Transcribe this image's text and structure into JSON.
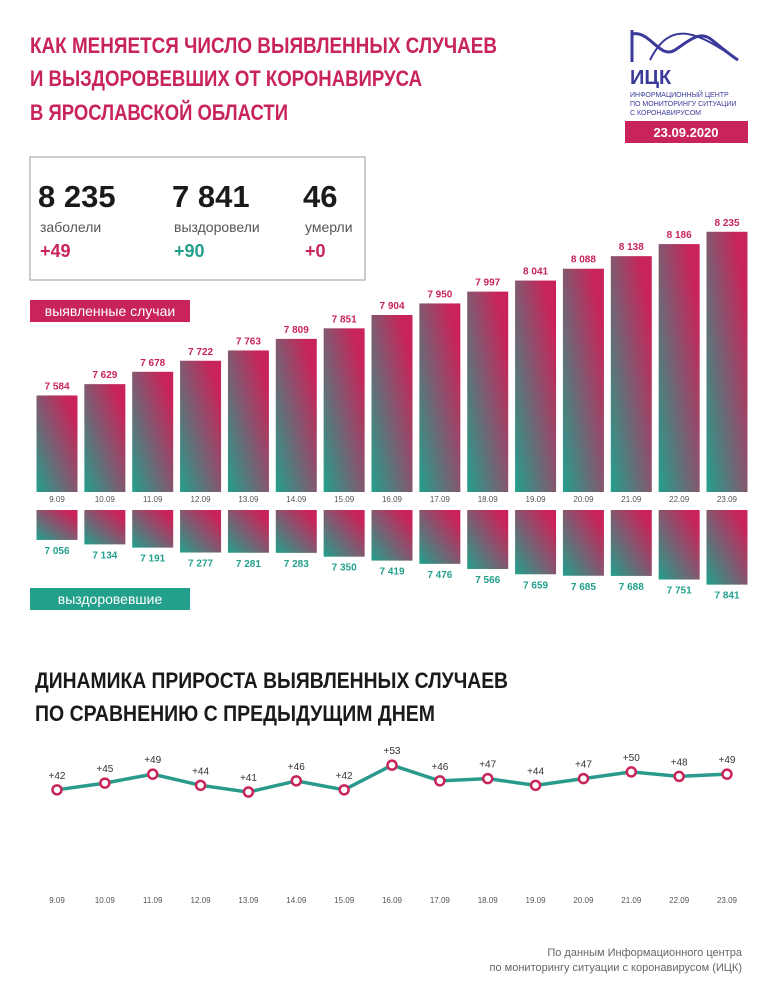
{
  "header": {
    "title": [
      "КАК МЕНЯЕТСЯ ЧИСЛО ВЫЯВЛЕННЫХ СЛУЧАЕВ",
      "И ВЫЗДОРОВЕВШИХ ОТ КОРОНАВИРУСА",
      "В ЯРОСЛАВСКОЙ ОБЛАСТИ"
    ],
    "logo": "ИЦК",
    "logo_subtitle": [
      "ИНФОРМАЦИОННЫЙ ЦЕНТР",
      "ПО МОНИТОРИНГУ СИТУАЦИИ",
      "С КОРОНАВИРУСОМ"
    ],
    "date": "23.09.2020"
  },
  "stats": [
    {
      "value": "8 235",
      "label": "заболели",
      "change": "+49"
    },
    {
      "value": "7 841",
      "label": "выздоровели",
      "change": "+90"
    },
    {
      "value": "46",
      "label": "умерли",
      "change": "+0"
    }
  ],
  "chart_data": [
    {
      "type": "bar",
      "label": "выявленные случаи",
      "categories": [
        "9.09",
        "10.09",
        "11.09",
        "12.09",
        "13.09",
        "14.09",
        "15.09",
        "16.09",
        "17.09",
        "18.09",
        "19.09",
        "20.09",
        "21.09",
        "22.09",
        "23.09"
      ],
      "values": [
        7584,
        7629,
        7678,
        7722,
        7763,
        7809,
        7851,
        7904,
        7950,
        7997,
        8041,
        8088,
        8138,
        8186,
        8235
      ],
      "value_labels": [
        "7 584",
        "7 629",
        "7 678",
        "7 722",
        "7 763",
        "7 809",
        "7 851",
        "7 904",
        "7 950",
        "7 997",
        "8 041",
        "8 088",
        "8 138",
        "8 186",
        "8 235"
      ],
      "ylim": [
        7200,
        8250
      ],
      "colors": [
        "#c8245a",
        "#22a08c"
      ]
    },
    {
      "type": "bar",
      "direction": "down",
      "label": "выздоровевшие",
      "values": [
        7056,
        7134,
        7191,
        7277,
        7281,
        7283,
        7350,
        7419,
        7476,
        7566,
        7659,
        7685,
        7688,
        7751,
        7841
      ],
      "value_labels": [
        "7 056",
        "7 134",
        "7 191",
        "7 277",
        "7 281",
        "7 283",
        "7 350",
        "7 419",
        "7 476",
        "7 566",
        "7 659",
        "7 685",
        "7 688",
        "7 751",
        "7 841"
      ],
      "ylim": [
        6530,
        7900
      ],
      "colors": [
        "#c8245a",
        "#22a08c"
      ]
    },
    {
      "type": "line",
      "title": [
        "ДИНАМИКА ПРИРОСТА ВЫЯВЛЕННЫХ СЛУЧАЕВ",
        "ПО СРАВНЕНИЮ С ПРЕДЫДУЩИМ ДНЕМ"
      ],
      "categories": [
        "9.09",
        "10.09",
        "11.09",
        "12.09",
        "13.09",
        "14.09",
        "15.09",
        "16.09",
        "17.09",
        "18.09",
        "19.09",
        "20.09",
        "21.09",
        "22.09",
        "23.09"
      ],
      "values": [
        42,
        45,
        49,
        44,
        41,
        46,
        42,
        53,
        46,
        47,
        44,
        47,
        50,
        48,
        49
      ],
      "value_labels": [
        "+42",
        "+45",
        "+49",
        "+44",
        "+41",
        "+46",
        "+42",
        "+53",
        "+46",
        "+47",
        "+44",
        "+47",
        "+50",
        "+48",
        "+49"
      ],
      "ylim": [
        35,
        60
      ],
      "color": "#2a9a8c",
      "marker_color": "#c8245a"
    }
  ],
  "footer": [
    "По данным Информационного центра",
    "по мониторингу ситуации с коронавирусом (ИЦК)"
  ]
}
